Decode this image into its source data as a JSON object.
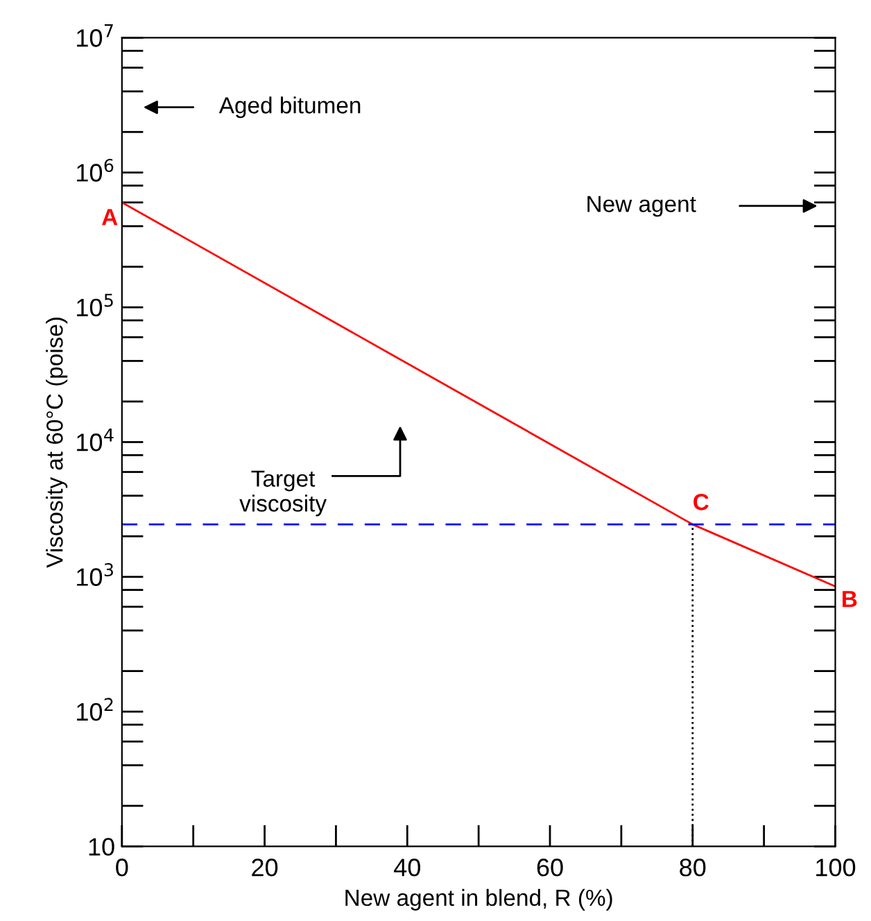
{
  "chart_data": {
    "type": "line",
    "xlabel": "New agent in blend, R (%)",
    "ylabel": "Viscosity at 60°C (poise)",
    "series": [
      {
        "color": "#ff0000",
        "x": [
          0,
          80,
          100
        ],
        "values": [
          600000,
          2450,
          850
        ],
        "line_style": "solid"
      }
    ],
    "ref_lines": [
      {
        "axis": "y",
        "value": 2450,
        "label": null,
        "color": "#0000ff",
        "line_style": "dashed"
      },
      {
        "axis": "x",
        "value": 80,
        "label": null,
        "color": "#000000",
        "line_style": "dotted"
      }
    ],
    "annotations": [
      {
        "text": "A",
        "x": 0,
        "y": 600000
      },
      {
        "text": "B",
        "x": 100,
        "y": 850
      },
      {
        "text": "C",
        "x": 80,
        "y": 2450
      },
      "Aged bitumen",
      "New agent",
      "Target\nviscosity"
    ],
    "xlim": [
      0,
      100
    ],
    "xticks": [
      0,
      {
        "value": 10,
        "label": null
      },
      20,
      {
        "value": 30,
        "label": null
      },
      40,
      {
        "value": 50,
        "label": null
      },
      60,
      {
        "value": 70,
        "label": null
      },
      80,
      {
        "value": 90,
        "label": null
      },
      100
    ],
    "ylim": [
      10,
      10000000
    ],
    "yticks": [
      {
        "value": 10,
        "label": "10"
      },
      {
        "value": 20,
        "label": null
      },
      {
        "value": 40,
        "label": null
      },
      {
        "value": 60,
        "label": null
      },
      {
        "value": 80,
        "label": null
      },
      {
        "value": 100,
        "label": "10$^{2}$"
      },
      {
        "value": 200,
        "label": null
      },
      {
        "value": 400,
        "label": null
      },
      {
        "value": 600,
        "label": null
      },
      {
        "value": 800,
        "label": null
      },
      {
        "value": 1000,
        "label": "10$^{3}$"
      },
      {
        "value": 2000,
        "label": null
      },
      {
        "value": 4000,
        "label": null
      },
      {
        "value": 6000,
        "label": null
      },
      {
        "value": 8000,
        "label": null
      },
      {
        "value": 10000,
        "label": "10$^{4}$"
      },
      {
        "value": 20000,
        "label": null
      },
      {
        "value": 40000,
        "label": null
      },
      {
        "value": 60000,
        "label": null
      },
      {
        "value": 80000,
        "label": null
      },
      {
        "value": 100000,
        "label": "10$^{5}$"
      },
      {
        "value": 200000,
        "label": null
      },
      {
        "value": 400000,
        "label": null
      },
      {
        "value": 600000,
        "label": null
      },
      {
        "value": 800000,
        "label": null
      },
      {
        "value": 1000000,
        "label": "10$^{6}$"
      },
      {
        "value": 2000000,
        "label": null
      },
      {
        "value": 4000000,
        "label": null
      },
      {
        "value": 6000000,
        "label": null
      },
      {
        "value": 8000000,
        "label": null
      },
      {
        "value": 10000000,
        "label": "10$^{7}$"
      }
    ],
    "log": true,
    "grid": false,
    "legend": false
  }
}
